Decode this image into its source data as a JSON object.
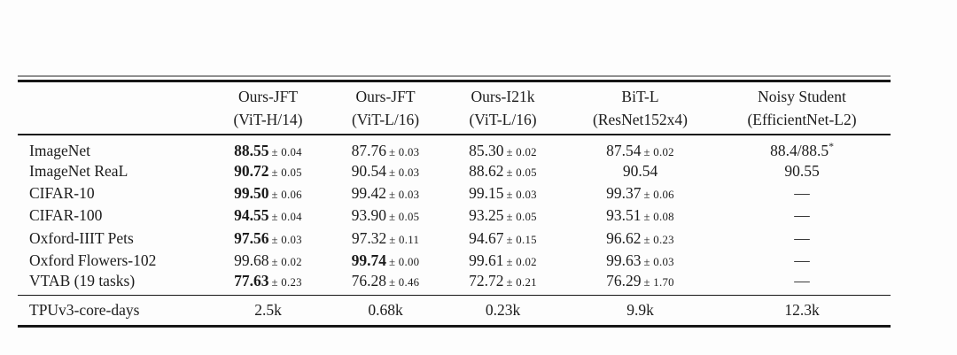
{
  "table": {
    "columns": [
      {
        "line1": "",
        "line2": ""
      },
      {
        "line1": "Ours-JFT",
        "line2": "(ViT-H/14)"
      },
      {
        "line1": "Ours-JFT",
        "line2": "(ViT-L/16)"
      },
      {
        "line1": "Ours-I21k",
        "line2": "(ViT-L/16)"
      },
      {
        "line1": "BiT-L",
        "line2": "(ResNet152x4)"
      },
      {
        "line1": "Noisy Student",
        "line2": "(EfficientNet-L2)"
      }
    ],
    "rows": [
      {
        "label": "ImageNet",
        "cells": [
          {
            "value": "88.55",
            "pm": "± 0.04",
            "bold": true
          },
          {
            "value": "87.76",
            "pm": "± 0.03"
          },
          {
            "value": "85.30",
            "pm": "± 0.02"
          },
          {
            "value": "87.54",
            "pm": "± 0.02"
          },
          {
            "value": "88.4/88.5",
            "sup": "*"
          }
        ]
      },
      {
        "label": "ImageNet ReaL",
        "cells": [
          {
            "value": "90.72",
            "pm": "± 0.05",
            "bold": true
          },
          {
            "value": "90.54",
            "pm": "± 0.03"
          },
          {
            "value": "88.62",
            "pm": "± 0.05"
          },
          {
            "value": "90.54"
          },
          {
            "value": "90.55"
          }
        ]
      },
      {
        "label": "CIFAR-10",
        "cells": [
          {
            "value": "99.50",
            "pm": "± 0.06",
            "bold": true
          },
          {
            "value": "99.42",
            "pm": "± 0.03"
          },
          {
            "value": "99.15",
            "pm": "± 0.03"
          },
          {
            "value": "99.37",
            "pm": "± 0.06"
          },
          {
            "value": "—"
          }
        ]
      },
      {
        "label": "CIFAR-100",
        "cells": [
          {
            "value": "94.55",
            "pm": "± 0.04",
            "bold": true
          },
          {
            "value": "93.90",
            "pm": "± 0.05"
          },
          {
            "value": "93.25",
            "pm": "± 0.05"
          },
          {
            "value": "93.51",
            "pm": "± 0.08"
          },
          {
            "value": "—"
          }
        ]
      },
      {
        "label": "Oxford-IIIT Pets",
        "cells": [
          {
            "value": "97.56",
            "pm": "± 0.03",
            "bold": true
          },
          {
            "value": "97.32",
            "pm": "± 0.11"
          },
          {
            "value": "94.67",
            "pm": "± 0.15"
          },
          {
            "value": "96.62",
            "pm": "± 0.23"
          },
          {
            "value": "—"
          }
        ]
      },
      {
        "label": "Oxford Flowers-102",
        "cells": [
          {
            "value": "99.68",
            "pm": "± 0.02"
          },
          {
            "value": "99.74",
            "pm": "± 0.00",
            "bold": true
          },
          {
            "value": "99.61",
            "pm": "± 0.02"
          },
          {
            "value": "99.63",
            "pm": "± 0.03"
          },
          {
            "value": "—"
          }
        ]
      },
      {
        "label": "VTAB (19 tasks)",
        "cells": [
          {
            "value": "77.63",
            "pm": "± 0.23",
            "bold": true
          },
          {
            "value": "76.28",
            "pm": "± 0.46"
          },
          {
            "value": "72.72",
            "pm": "± 0.21"
          },
          {
            "value": "76.29",
            "pm": "± 1.70"
          },
          {
            "value": "—"
          }
        ]
      }
    ],
    "footer": {
      "label": "TPUv3-core-days",
      "cells": [
        "2.5k",
        "0.68k",
        "0.23k",
        "9.9k",
        "12.3k"
      ]
    }
  }
}
